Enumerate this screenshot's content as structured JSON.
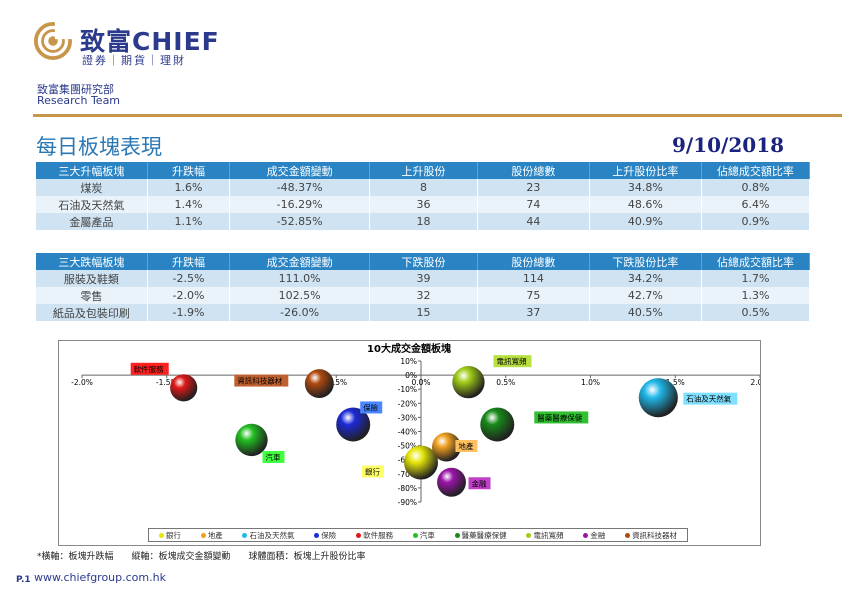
{
  "header": {
    "brand_cn": "致富",
    "brand_en": "CHIEF",
    "tagline": "證券｜期貨｜理財",
    "dept": "致富集團研究部",
    "team": "Research Team"
  },
  "page": {
    "title": "每日板塊表現",
    "date": "9/10/2018"
  },
  "table_up": {
    "headers": [
      "三大升幅板塊",
      "升跌幅",
      "成交金額變動",
      "上升股份",
      "股份總數",
      "上升股份比率",
      "佔總成交額比率"
    ],
    "rows": [
      [
        "煤炭",
        "1.6%",
        "-48.37%",
        "8",
        "23",
        "34.8%",
        "0.8%"
      ],
      [
        "石油及天然氣",
        "1.4%",
        "-16.29%",
        "36",
        "74",
        "48.6%",
        "6.4%"
      ],
      [
        "金屬產品",
        "1.1%",
        "-52.85%",
        "18",
        "44",
        "40.9%",
        "0.9%"
      ]
    ]
  },
  "table_down": {
    "headers": [
      "三大跌幅板塊",
      "升跌幅",
      "成交金額變動",
      "下跌股份",
      "股份總數",
      "下跌股份比率",
      "佔總成交額比率"
    ],
    "rows": [
      [
        "服裝及鞋類",
        "-2.5%",
        "111.0%",
        "39",
        "114",
        "34.2%",
        "1.7%"
      ],
      [
        "零售",
        "-2.0%",
        "102.5%",
        "32",
        "75",
        "42.7%",
        "1.3%"
      ],
      [
        "紙品及包裝印刷",
        "-1.9%",
        "-26.0%",
        "15",
        "37",
        "40.5%",
        "0.5%"
      ]
    ]
  },
  "chart_data": {
    "type": "scatter",
    "title": "10大成交金額板塊",
    "xlim": [
      -2.0,
      2.0
    ],
    "ylim": [
      -90,
      10
    ],
    "x_ticks": [
      "-2.0%",
      "-1.5%",
      "-1.0%",
      "-0.5%",
      "0.0%",
      "0.5%",
      "1.0%",
      "1.5%",
      "2.0%"
    ],
    "y_ticks": [
      "10%",
      "0%",
      "-10%",
      "-20%",
      "-30%",
      "-40%",
      "-50%",
      "-60%",
      "-70%",
      "-80%",
      "-90%"
    ],
    "series": [
      {
        "name": "銀行",
        "x": 0.0,
        "y": -62,
        "color": "#e6e60a",
        "label_color": "#ffff66"
      },
      {
        "name": "地產",
        "x": 0.15,
        "y": -51,
        "color": "#f0a020",
        "label_color": "#ffc060"
      },
      {
        "name": "石油及天然氣",
        "x": 1.4,
        "y": -16,
        "color": "#20b8e8",
        "label_color": "#80e0ff"
      },
      {
        "name": "保險",
        "x": -0.4,
        "y": -35,
        "color": "#1c2ad8",
        "label_color": "#4a86ff"
      },
      {
        "name": "軟件服務",
        "x": -1.4,
        "y": -9,
        "color": "#e01818",
        "label_color": "#ff2020"
      },
      {
        "name": "汽車",
        "x": -1.0,
        "y": -46,
        "color": "#22c022",
        "label_color": "#40ff40"
      },
      {
        "name": "醫藥醫療保健",
        "x": 0.45,
        "y": -35,
        "color": "#188a18",
        "label_color": "#30c030"
      },
      {
        "name": "電訊寬頻",
        "x": 0.28,
        "y": -5,
        "color": "#a0cc18",
        "label_color": "#b8e040"
      },
      {
        "name": "金融",
        "x": 0.18,
        "y": -76,
        "color": "#9a14a8",
        "label_color": "#c040c8"
      },
      {
        "name": "資訊科技器材",
        "x": -0.6,
        "y": -6,
        "color": "#b04a10",
        "label_color": "#c06030"
      }
    ],
    "bubble_sizes": [
      1.0,
      0.85,
      1.15,
      1.0,
      0.8,
      0.95,
      1.0,
      0.95,
      0.85,
      0.85
    ],
    "grid": false,
    "legend": "bottom"
  },
  "footnote": "*橫軸：板塊升跌幅　　縱軸：板塊成交金額變動　　球體面積：板塊上升股份比率",
  "footer": {
    "url": "www.chiefgroup.com.hk",
    "page": "P.1"
  }
}
